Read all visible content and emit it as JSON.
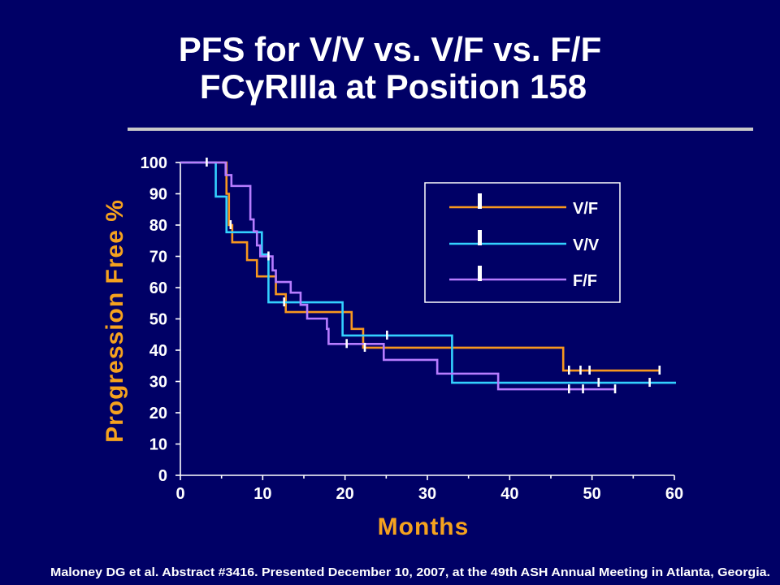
{
  "slide": {
    "background": "#000066",
    "divider_color": "#C8C8C8",
    "text_color": "#FFFFFF",
    "accent_color": "#F5A21E",
    "footer": "Maloney DG et al. Abstract #3416. Presented December 10, 2007, at the 49th ASH Annual Meeting in Atlanta, Georgia."
  },
  "chart_data": {
    "type": "line",
    "line_style": "step",
    "title": "PFS for V/V vs. V/F vs. F/F",
    "subtitle": "FCγRIIIa at Position 158",
    "xlabel": "Months",
    "ylabel": "Progression Free %",
    "xlim": [
      0,
      60
    ],
    "ylim": [
      0,
      100
    ],
    "x_ticks": [
      0,
      10,
      20,
      30,
      40,
      50,
      60
    ],
    "y_ticks": [
      0,
      10,
      20,
      30,
      40,
      50,
      60,
      70,
      80,
      90,
      100
    ],
    "grid": false,
    "legend_position": "top-right",
    "censor_color": "#FFFFFF",
    "series": [
      {
        "name": "V/F",
        "color": "#F7971F",
        "x": [
          0,
          5.6,
          5.9,
          6.3,
          8.1,
          9.3,
          11.6,
          12.8,
          20.8,
          22.2,
          46.5,
          58.2
        ],
        "y": [
          100,
          90,
          80,
          74.5,
          68.8,
          63.6,
          57.9,
          52.2,
          46.8,
          40.8,
          33.5,
          33.5
        ],
        "censored_x": [
          3.2,
          6.1,
          22.4,
          47.2,
          48.6,
          49.7,
          58.2
        ]
      },
      {
        "name": "V/V",
        "color": "#33D1FF",
        "x": [
          0,
          4.3,
          5.6,
          9.9,
          10.7,
          19.7,
          33.0,
          60.2
        ],
        "y": [
          100,
          89.1,
          77.7,
          70.6,
          55.3,
          44.7,
          29.6,
          29.6
        ],
        "censored_x": [
          12.6,
          25.1,
          50.8,
          57.0
        ]
      },
      {
        "name": "F/F",
        "color": "#B77CFF",
        "x": [
          0,
          5.5,
          6.2,
          8.5,
          8.9,
          9.3,
          9.7,
          11.2,
          11.6,
          13.4,
          14.6,
          15.4,
          17.8,
          18.0,
          24.7,
          31.2,
          38.6,
          52.8
        ],
        "y": [
          100,
          96,
          92.5,
          81.8,
          78,
          73.5,
          70,
          65.5,
          61.8,
          58.4,
          54.5,
          50.1,
          46.8,
          42,
          36.9,
          32.5,
          27.5,
          27.5
        ],
        "censored_x": [
          10.7,
          20.2,
          47.2,
          48.9,
          52.8
        ]
      }
    ]
  }
}
